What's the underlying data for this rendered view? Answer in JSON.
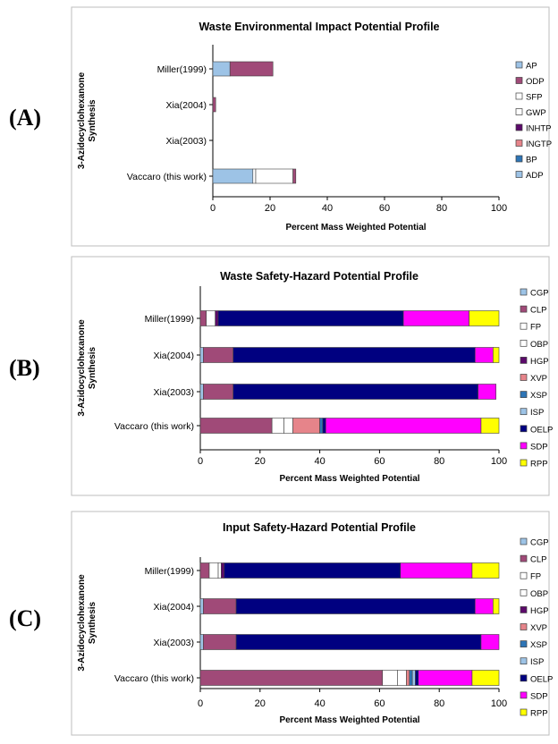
{
  "chart_data": [
    {
      "panel_label": "(A)",
      "type": "bar",
      "orientation": "horizontal",
      "stacked": true,
      "title": "Waste Environmental Impact Potential Profile",
      "xlabel": "Percent Mass Weighted Potential",
      "ylabel": "3-Azidocyclohexanone Synthesis",
      "xlim": [
        0,
        100
      ],
      "xticks": [
        0,
        20,
        40,
        60,
        80,
        100
      ],
      "categories": [
        "Miller(1999)",
        "Xia(2004)",
        "Xia(2003)",
        "Vaccaro (this work)"
      ],
      "series": [
        {
          "name": "ADP",
          "color": "#9DC3E6",
          "values": [
            6,
            0,
            0,
            14
          ]
        },
        {
          "name": "BP",
          "color": "#2E75B6",
          "values": [
            0,
            0,
            0,
            0
          ]
        },
        {
          "name": "INGTP",
          "color": "#E6848A",
          "values": [
            0,
            0,
            0,
            0
          ]
        },
        {
          "name": "INHTP",
          "color": "#5C0A6B",
          "values": [
            0,
            0,
            0,
            0
          ]
        },
        {
          "name": "GWP",
          "color": "#FFFFFF",
          "values": [
            0,
            0,
            0,
            1
          ]
        },
        {
          "name": "SFP",
          "color": "#FFFFFF",
          "values": [
            0,
            0,
            0,
            13
          ]
        },
        {
          "name": "ODP",
          "color": "#A04A78",
          "values": [
            15,
            1,
            0,
            1
          ]
        },
        {
          "name": "AP",
          "color": "#9DC3E6",
          "values": [
            0,
            0,
            0,
            0
          ]
        }
      ],
      "legend": [
        "AP",
        "ODP",
        "SFP",
        "GWP",
        "INHTP",
        "INGTP",
        "BP",
        "ADP"
      ],
      "legend_position": "right",
      "grid": false
    },
    {
      "panel_label": "(B)",
      "type": "bar",
      "orientation": "horizontal",
      "stacked": true,
      "title": "Waste Safety-Hazard Potential Profile",
      "xlabel": "Percent Mass Weighted Potential",
      "ylabel": "3-Azidocyclohexanone Synthesis",
      "xlim": [
        0,
        100
      ],
      "xticks": [
        0,
        20,
        40,
        60,
        80,
        100
      ],
      "categories": [
        "Miller(1999)",
        "Xia(2004)",
        "Xia(2003)",
        "Vaccaro (this work)"
      ],
      "series": [
        {
          "name": "CGP",
          "color": "#9DC3E6",
          "values": [
            0,
            1,
            1,
            0
          ]
        },
        {
          "name": "CLP",
          "color": "#A04A78",
          "values": [
            2,
            10,
            10,
            24
          ]
        },
        {
          "name": "FP",
          "color": "#FFFFFF",
          "values": [
            3,
            0,
            0,
            4
          ]
        },
        {
          "name": "OBP",
          "color": "#FFFFFF",
          "values": [
            0,
            0,
            0,
            3
          ]
        },
        {
          "name": "HGP",
          "color": "#5C0A6B",
          "values": [
            1,
            0,
            0,
            0
          ]
        },
        {
          "name": "XVP",
          "color": "#E6848A",
          "values": [
            0,
            0,
            0,
            9
          ]
        },
        {
          "name": "XSP",
          "color": "#2E75B6",
          "values": [
            0,
            0,
            0,
            1
          ]
        },
        {
          "name": "ISP",
          "color": "#9DC3E6",
          "values": [
            0,
            0,
            0,
            0
          ]
        },
        {
          "name": "OELP",
          "color": "#000080",
          "values": [
            62,
            81,
            82,
            1
          ]
        },
        {
          "name": "SDP",
          "color": "#FF00FF",
          "values": [
            22,
            6,
            6,
            52
          ]
        },
        {
          "name": "RPP",
          "color": "#FFFF00",
          "values": [
            10,
            2,
            0,
            6
          ]
        }
      ],
      "legend": [
        "CGP",
        "CLP",
        "FP",
        "OBP",
        "HGP",
        "XVP",
        "XSP",
        "ISP",
        "OELP",
        "SDP",
        "RPP"
      ],
      "legend_position": "right",
      "grid": false
    },
    {
      "panel_label": "(C)",
      "type": "bar",
      "orientation": "horizontal",
      "stacked": true,
      "title": "Input Safety-Hazard Potential Profile",
      "xlabel": "Percent Mass Weighted Potential",
      "ylabel": "3-Azidocyclohexanone Synthesis",
      "xlim": [
        0,
        100
      ],
      "xticks": [
        0,
        20,
        40,
        60,
        80,
        100
      ],
      "categories": [
        "Miller(1999)",
        "Xia(2004)",
        "Xia(2003)",
        "Vaccaro (this work)"
      ],
      "series": [
        {
          "name": "CGP",
          "color": "#9DC3E6",
          "values": [
            0,
            1,
            1,
            0
          ]
        },
        {
          "name": "CLP",
          "color": "#A04A78",
          "values": [
            3,
            11,
            11,
            61
          ]
        },
        {
          "name": "FP",
          "color": "#FFFFFF",
          "values": [
            3,
            0,
            0,
            5
          ]
        },
        {
          "name": "OBP",
          "color": "#FFFFFF",
          "values": [
            1,
            0,
            0,
            3
          ]
        },
        {
          "name": "HGP",
          "color": "#5C0A6B",
          "values": [
            1,
            0,
            0,
            0
          ]
        },
        {
          "name": "XVP",
          "color": "#E6848A",
          "values": [
            0,
            0,
            0,
            1
          ]
        },
        {
          "name": "XSP",
          "color": "#2E75B6",
          "values": [
            0,
            0,
            0,
            1
          ]
        },
        {
          "name": "ISP",
          "color": "#9DC3E6",
          "values": [
            0,
            0,
            0,
            1
          ]
        },
        {
          "name": "OELP",
          "color": "#000080",
          "values": [
            59,
            80,
            82,
            1
          ]
        },
        {
          "name": "SDP",
          "color": "#FF00FF",
          "values": [
            24,
            6,
            6,
            18
          ]
        },
        {
          "name": "RPP",
          "color": "#FFFF00",
          "values": [
            9,
            2,
            0,
            9
          ]
        }
      ],
      "legend": [
        "CGP",
        "CLP",
        "FP",
        "OBP",
        "HGP",
        "XVP",
        "XSP",
        "ISP",
        "OELP",
        "SDP",
        "RPP"
      ],
      "legend_position": "right",
      "grid": false
    }
  ]
}
